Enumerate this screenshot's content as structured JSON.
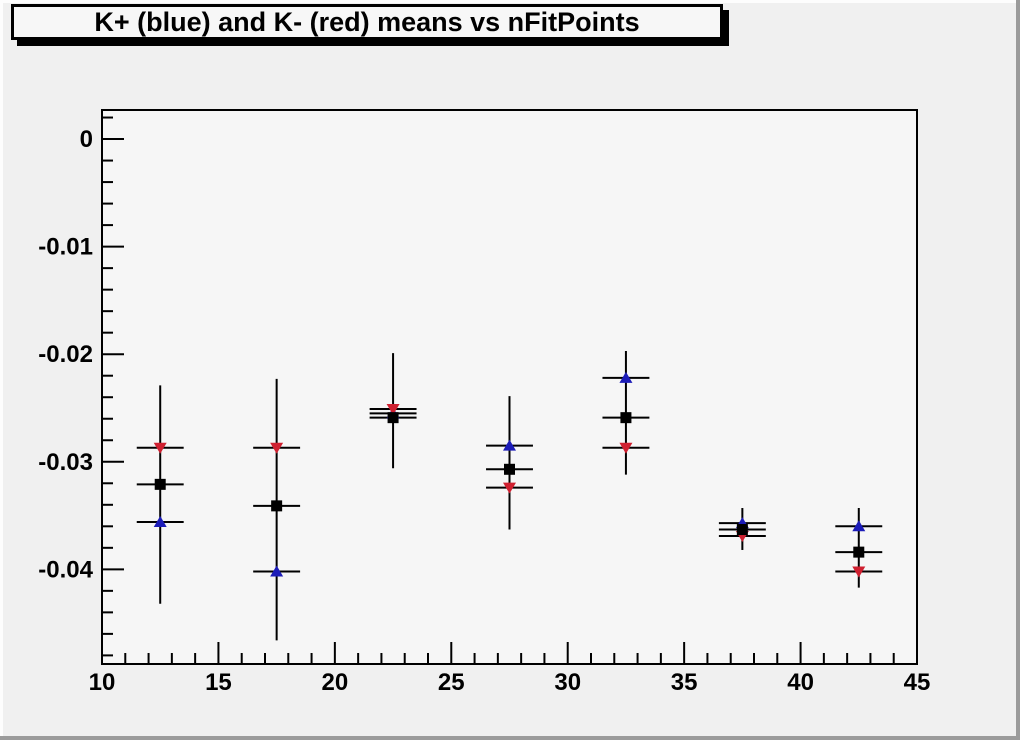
{
  "title": {
    "text": "K+ (blue) and K- (red) means vs nFitPoints"
  },
  "colors": {
    "canvas_bg": "#f0f0f0",
    "frame_bg": "#f6f6f6",
    "axis": "#000000",
    "error_bar": "#000000",
    "kplus_blue": "#1c1cb8",
    "kminus_red": "#cf2030",
    "mean_black": "#000000",
    "title_box_bg": "#f7f7f7",
    "title_shadow": "#000000",
    "edge_light": "#fdfdfd",
    "edge_dark": "#9b9b9b"
  },
  "chart_data": {
    "type": "scatter",
    "title": "K+ (blue) and K- (red) means vs nFitPoints",
    "xlabel": "",
    "ylabel": "",
    "xlim": [
      10,
      45
    ],
    "ylim": [
      -0.0488,
      0.0027
    ],
    "grid": false,
    "legend": "none",
    "x_major_ticks": [
      10,
      15,
      20,
      25,
      30,
      35,
      40,
      45
    ],
    "x_tick_labels": [
      "10",
      "15",
      "20",
      "25",
      "30",
      "35",
      "40",
      "45"
    ],
    "x_minor_step": 1,
    "y_major_ticks": [
      0,
      -0.01,
      -0.02,
      -0.03,
      -0.04
    ],
    "y_tick_labels": [
      "0",
      "-0.01",
      "-0.02",
      "-0.03",
      "-0.04"
    ],
    "y_minor_step": 0.002,
    "x": [
      12.5,
      17.5,
      22.5,
      27.5,
      32.5,
      37.5,
      42.5
    ],
    "x_error_halfwidth": 0.75,
    "series": [
      {
        "name": "K+ (blue)",
        "marker": "triangle-up",
        "color": "#1c1cb8",
        "values": [
          -0.0356,
          -0.0402,
          -0.0255,
          -0.0285,
          -0.0222,
          -0.0357,
          -0.036
        ]
      },
      {
        "name": "K- (red)",
        "marker": "triangle-down",
        "color": "#cf2030",
        "values": [
          -0.0287,
          -0.0287,
          -0.0251,
          -0.0324,
          -0.0287,
          -0.0369,
          -0.0402
        ]
      },
      {
        "name": "mean (black)",
        "marker": "square",
        "color": "#000000",
        "values": [
          -0.0321,
          -0.0341,
          -0.0259,
          -0.0307,
          -0.0259,
          -0.0363,
          -0.0384
        ]
      }
    ],
    "error_bars": [
      {
        "x": 12.5,
        "low": -0.0432,
        "high": -0.0229
      },
      {
        "x": 17.5,
        "low": -0.0466,
        "high": -0.0223
      },
      {
        "x": 22.5,
        "low": -0.0306,
        "high": -0.0199
      },
      {
        "x": 27.5,
        "low": -0.0363,
        "high": -0.0239
      },
      {
        "x": 32.5,
        "low": -0.0312,
        "high": -0.0197
      },
      {
        "x": 37.5,
        "low": -0.0382,
        "high": -0.0343
      },
      {
        "x": 42.5,
        "low": -0.0417,
        "high": -0.0343
      }
    ]
  }
}
